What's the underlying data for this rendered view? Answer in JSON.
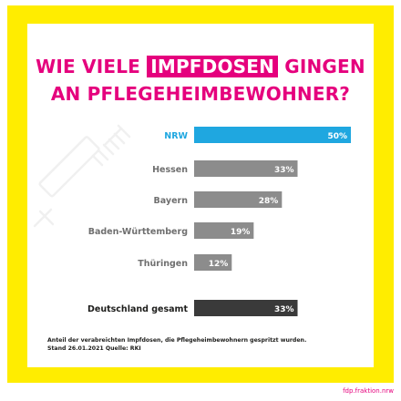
{
  "title": {
    "line1_before": "WIE VIELE ",
    "line1_highlight": "IMPFDOSEN",
    "line1_after": " GINGEN",
    "line2": "AN PFLEGEHEIMBEWOHNER?"
  },
  "footnote": {
    "line1": "Anteil der verabreichten Impfdosen, die Pflegeheimbewohnern gespritzt wurden.",
    "line2": "Stand 26.01.2021  Quelle: RKI"
  },
  "source_link": "fdp.fraktion.nrw",
  "colors": {
    "magenta": "#e5007d",
    "yellow": "#ffed00",
    "highlight_bar": "#1fa7e0",
    "regular_bar": "#8c8c8c",
    "total_bar": "#3a3a3a"
  },
  "chart_data": {
    "type": "bar",
    "orientation": "horizontal",
    "categories": [
      "NRW",
      "Hessen",
      "Bayern",
      "Baden-Württemberg",
      "Thüringen",
      "Deutschland gesamt"
    ],
    "values": [
      50,
      33,
      28,
      19,
      12,
      33
    ],
    "value_labels": [
      "50%",
      "33%",
      "28%",
      "19%",
      "12%",
      "33%"
    ],
    "unit": "%",
    "xlim": [
      0,
      50
    ],
    "highlighted_category": "NRW",
    "total_category": "Deutschland gesamt",
    "grid": false
  }
}
